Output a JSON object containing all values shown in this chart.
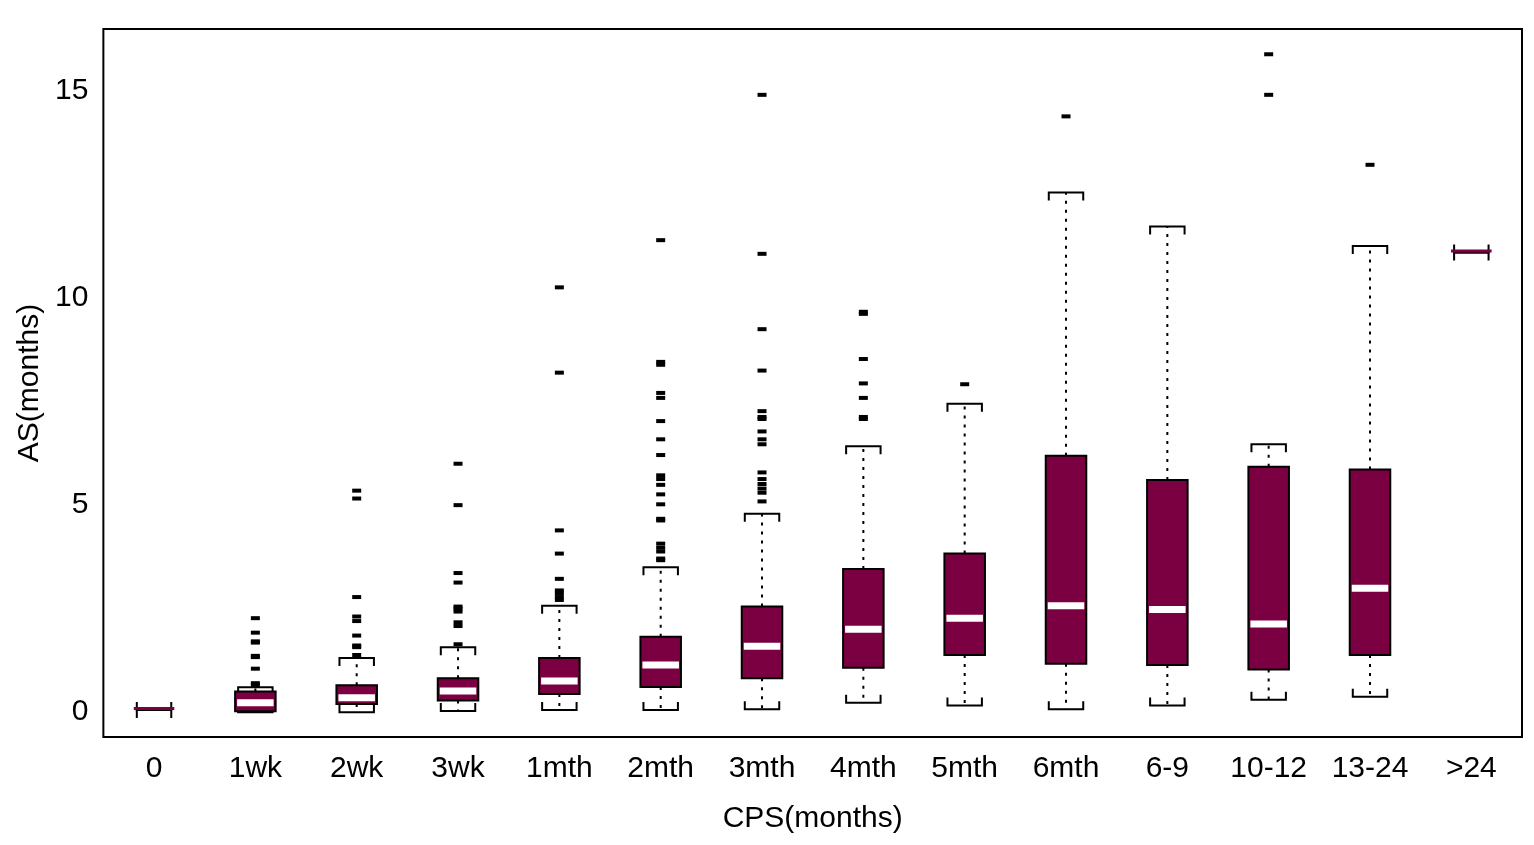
{
  "chart_data": {
    "type": "box",
    "xlabel": "CPS(months)",
    "ylabel": "AS(months)",
    "color": "#7b0041",
    "categories": [
      "0",
      "1wk",
      "2wk",
      "3wk",
      "1mth",
      "2mth",
      "3mth",
      "4mth",
      "5mth",
      "6mth",
      "6-9",
      "10-12",
      "13-24",
      ">24"
    ],
    "ylim": [
      -0.6,
      16.5
    ],
    "yticks": [
      0,
      5,
      10,
      15
    ],
    "grid": false,
    "boxes": [
      {
        "low": 0.05,
        "q1": 0.05,
        "median": 0.05,
        "q3": 0.05,
        "high": 0.05
      },
      {
        "low": 0,
        "q1": 0.02,
        "median": 0.23,
        "q3": 0.5,
        "high": 0.6,
        "outliers": [
          0.65,
          0.7,
          1.05,
          1.33,
          1.36,
          1.68,
          1.71,
          1.92,
          2.27
        ]
      },
      {
        "low": 0,
        "q1": 0.2,
        "median": 0.35,
        "q3": 0.65,
        "high": 1.31,
        "outliers": [
          1.38,
          1.57,
          1.61,
          1.85,
          2.2,
          2.31,
          2.78,
          5.16,
          5.35
        ]
      },
      {
        "low": 0.03,
        "q1": 0.28,
        "median": 0.51,
        "q3": 0.82,
        "high": 1.57,
        "outliers": [
          1.64,
          2.08,
          2.17,
          2.43,
          2.5,
          2.55,
          3.13,
          3.36,
          5.0,
          6.0
        ]
      },
      {
        "low": 0.05,
        "q1": 0.44,
        "median": 0.75,
        "q3": 1.31,
        "high": 2.57,
        "outliers": [
          2.71,
          2.78,
          2.87,
          2.94,
          3.22,
          3.83,
          4.39,
          8.2,
          10.26
        ]
      },
      {
        "low": 0.05,
        "q1": 0.61,
        "median": 1.14,
        "q3": 1.82,
        "high": 3.5,
        "outliers": [
          3.67,
          3.71,
          3.88,
          3.97,
          4.07,
          4.63,
          4.67,
          5.02,
          5.26,
          5.49,
          5.63,
          5.72,
          6.21,
          6.59,
          7.03,
          7.59,
          7.71,
          8.39,
          8.46,
          11.4
        ]
      },
      {
        "low": 0.07,
        "q1": 0.82,
        "median": 1.59,
        "q3": 2.55,
        "high": 4.79,
        "outliers": [
          5.09,
          5.3,
          5.4,
          5.51,
          5.63,
          5.79,
          6.47,
          6.59,
          6.78,
          7.08,
          7.13,
          7.27,
          8.25,
          9.25,
          11.07,
          14.91
        ]
      },
      {
        "low": 0.23,
        "q1": 1.07,
        "median": 2.0,
        "q3": 3.46,
        "high": 6.42,
        "outliers": [
          7.08,
          7.13,
          7.59,
          7.94,
          8.53,
          9.62,
          9.67
        ]
      },
      {
        "low": 0.16,
        "q1": 1.38,
        "median": 2.27,
        "q3": 3.83,
        "high": 7.45,
        "outliers": [
          7.92
        ]
      },
      {
        "low": 0.07,
        "q1": 1.17,
        "median": 2.57,
        "q3": 6.19,
        "high": 12.55,
        "outliers": [
          14.39
        ]
      },
      {
        "low": 0.16,
        "q1": 1.14,
        "median": 2.48,
        "q3": 5.61,
        "high": 11.73
      },
      {
        "low": 0.3,
        "q1": 1.03,
        "median": 2.13,
        "q3": 5.93,
        "high": 6.47,
        "outliers": [
          14.91,
          15.89
        ]
      },
      {
        "low": 0.37,
        "q1": 1.38,
        "median": 2.99,
        "q3": 5.86,
        "high": 11.26,
        "outliers": [
          13.22
        ]
      },
      {
        "low": 11.1,
        "q1": 11.1,
        "median": 11.1,
        "q3": 11.1,
        "high": 11.1
      }
    ]
  }
}
